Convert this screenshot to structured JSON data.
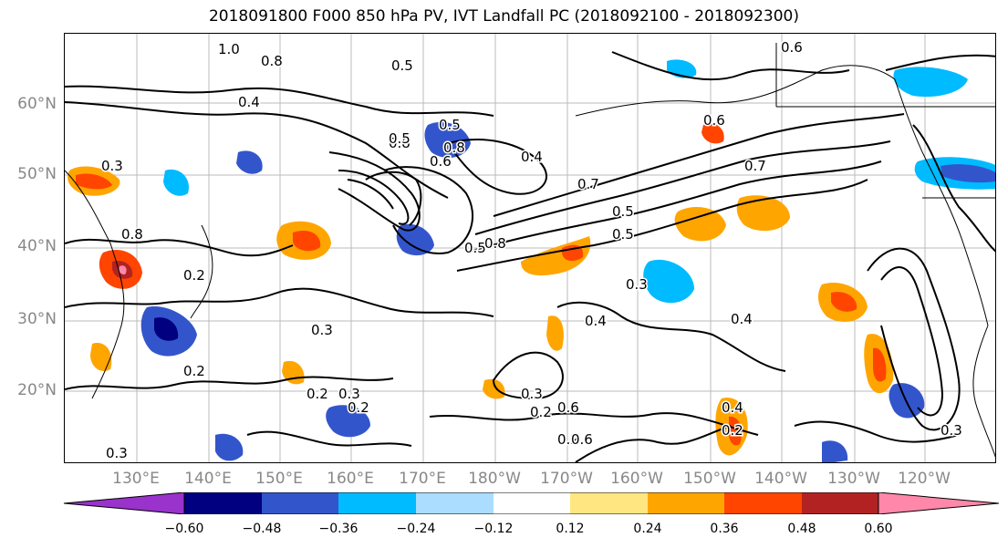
{
  "title": "2018091800 F000 850 hPa PV, IVT Landfall PC (2018092100 - 2018092300)",
  "map": {
    "lat_labels": [
      {
        "text": "60°N",
        "lat": 60
      },
      {
        "text": "50°N",
        "lat": 50
      },
      {
        "text": "40°N",
        "lat": 40
      },
      {
        "text": "30°N",
        "lat": 30
      },
      {
        "text": "20°N",
        "lat": 20
      }
    ],
    "lon_labels": [
      "130°E",
      "140°E",
      "150°E",
      "160°E",
      "170°E",
      "180°W",
      "170°W",
      "160°W",
      "150°W",
      "140°W",
      "130°W",
      "120°W"
    ],
    "contour_labels": [
      "1.0",
      "0.8",
      "0.4",
      "0.5",
      "0.8",
      "0.6",
      "0.8",
      "0.7",
      "0.5",
      "0.6",
      "0.6",
      "0.4",
      "0.3",
      "0.2",
      "0.8",
      "0.5",
      "0.8",
      "0.5",
      "0.3",
      "0.4",
      "0.4",
      "0.3",
      "0.3",
      "0.2",
      "0.2",
      "0.2",
      "0.3",
      "0.2",
      "0.4",
      "0.2",
      "0.3",
      "0.6",
      "0.2",
      "0.3",
      "0.5",
      "0.6",
      "0.5",
      "0.7"
    ]
  },
  "colorbar": {
    "ticks": [
      "−0.60",
      "−0.48",
      "−0.36",
      "−0.24",
      "−0.12",
      "0.12",
      "0.24",
      "0.36",
      "0.48",
      "0.60"
    ],
    "colors": [
      "#9933cc",
      "#000080",
      "#3355cc",
      "#00bbff",
      "#aaddff",
      "#ffffff",
      "#ffe680",
      "#ffa500",
      "#ff4500",
      "#b22222",
      "#ff88aa"
    ]
  },
  "chart_data": {
    "type": "heatmap",
    "title": "2018091800 F000 850 hPa PV, IVT Landfall PC (2018092100 - 2018092300)",
    "levels": [
      -0.6,
      -0.48,
      -0.36,
      -0.24,
      -0.12,
      0.12,
      0.24,
      0.36,
      0.48,
      0.6
    ],
    "lat_range": [
      10,
      70
    ],
    "lon_ticks": [
      "130°E",
      "140°E",
      "150°E",
      "160°E",
      "170°E",
      "180°W",
      "170°W",
      "160°W",
      "150°W",
      "140°W",
      "130°W",
      "120°W"
    ]
  }
}
